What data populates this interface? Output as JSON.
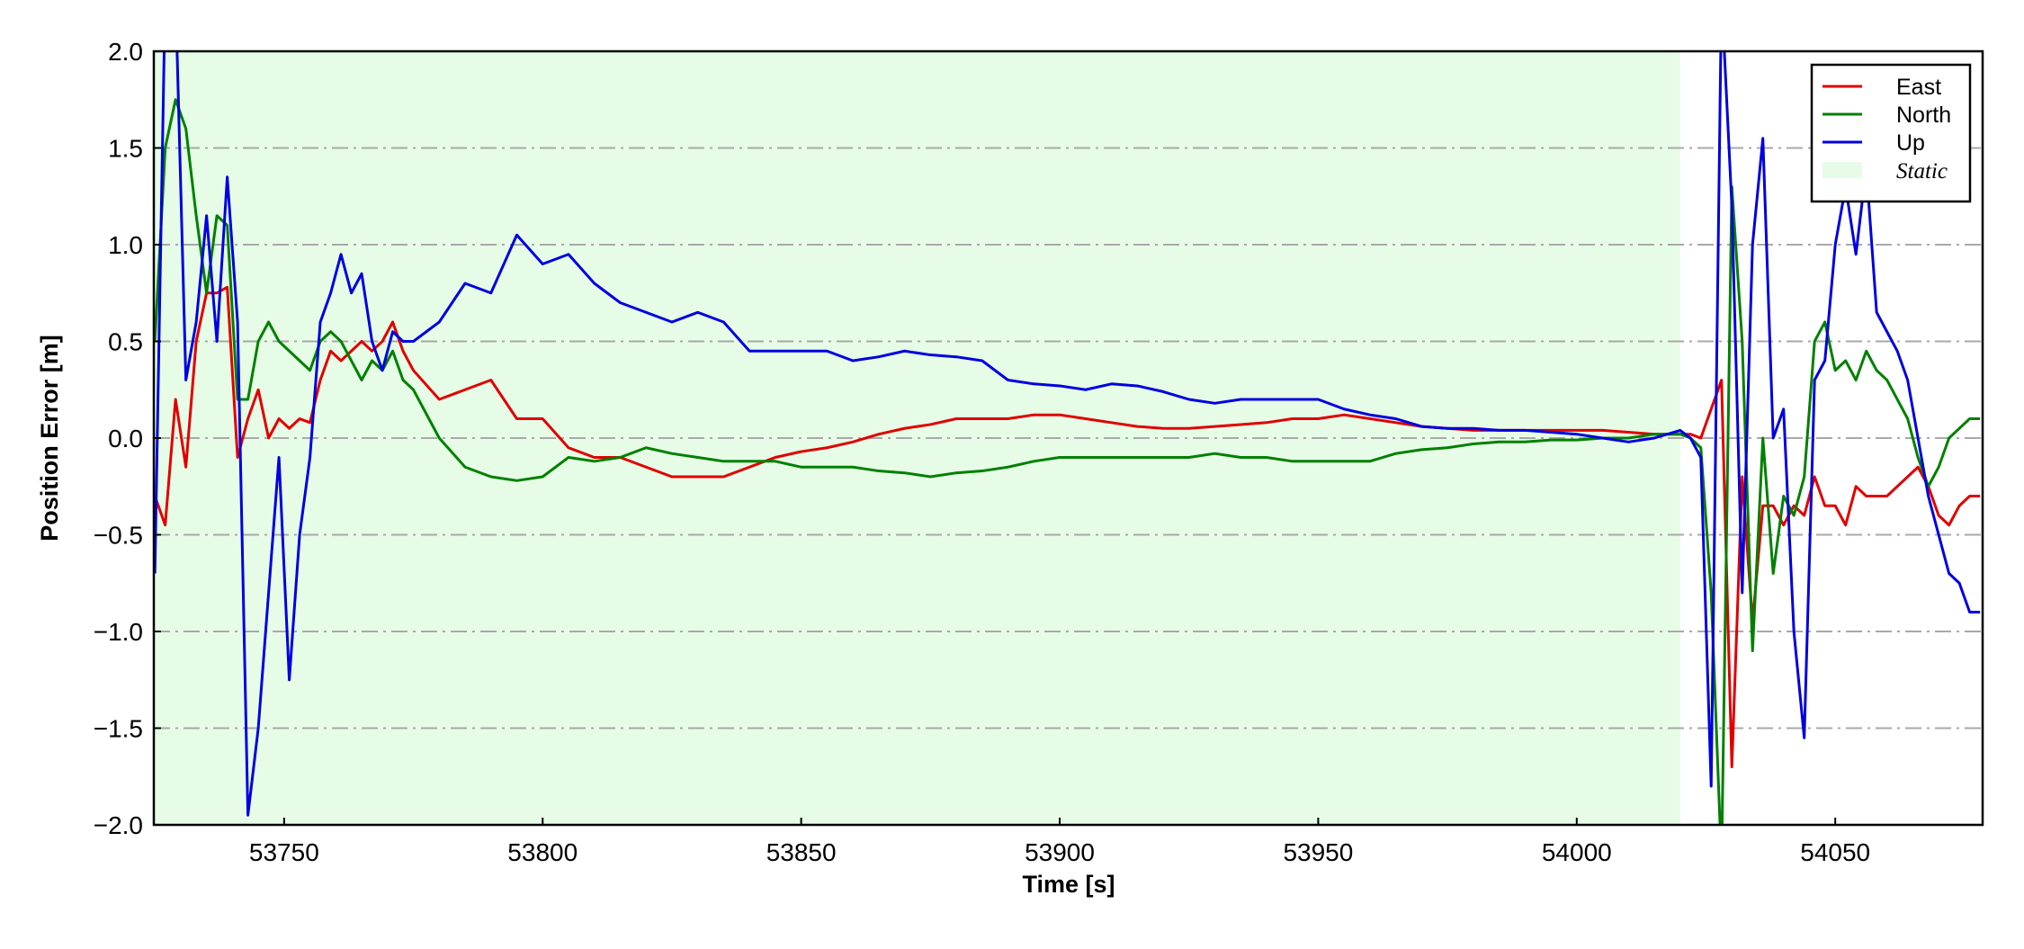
{
  "chart_data": {
    "type": "line",
    "xlabel": "Time [s]",
    "ylabel": "Position Error [m]",
    "x": [
      53725,
      53727,
      53729,
      53731,
      53733,
      53735,
      53737,
      53739,
      53741,
      53743,
      53745,
      53747,
      53749,
      53751,
      53753,
      53755,
      53757,
      53759,
      53761,
      53763,
      53765,
      53767,
      53769,
      53771,
      53773,
      53775,
      53780,
      53785,
      53790,
      53795,
      53800,
      53805,
      53810,
      53815,
      53820,
      53825,
      53830,
      53835,
      53840,
      53845,
      53850,
      53855,
      53860,
      53865,
      53870,
      53875,
      53880,
      53885,
      53890,
      53895,
      53900,
      53905,
      53910,
      53915,
      53920,
      53925,
      53930,
      53935,
      53940,
      53945,
      53950,
      53955,
      53960,
      53965,
      53970,
      53975,
      53980,
      53985,
      53990,
      53995,
      54000,
      54005,
      54010,
      54015,
      54020,
      54022,
      54024,
      54026,
      54028,
      54030,
      54032,
      54034,
      54036,
      54038,
      54040,
      54042,
      54044,
      54046,
      54048,
      54050,
      54052,
      54054,
      54056,
      54058,
      54060,
      54062,
      54064,
      54066,
      54068,
      54070,
      54072,
      54074,
      54076,
      54078
    ],
    "series": [
      {
        "name": "East",
        "color": "#e00000",
        "values": [
          -0.3,
          -0.45,
          0.2,
          -0.15,
          0.5,
          0.75,
          0.75,
          0.78,
          -0.1,
          0.1,
          0.25,
          0.0,
          0.1,
          0.05,
          0.1,
          0.08,
          0.3,
          0.45,
          0.4,
          0.45,
          0.5,
          0.45,
          0.5,
          0.6,
          0.45,
          0.35,
          0.2,
          0.25,
          0.3,
          0.1,
          0.1,
          -0.05,
          -0.1,
          -0.1,
          -0.15,
          -0.2,
          -0.2,
          -0.2,
          -0.15,
          -0.1,
          -0.07,
          -0.05,
          -0.02,
          0.02,
          0.05,
          0.07,
          0.1,
          0.1,
          0.1,
          0.12,
          0.12,
          0.1,
          0.08,
          0.06,
          0.05,
          0.05,
          0.06,
          0.07,
          0.08,
          0.1,
          0.1,
          0.12,
          0.1,
          0.08,
          0.06,
          0.05,
          0.04,
          0.04,
          0.04,
          0.04,
          0.04,
          0.04,
          0.03,
          0.02,
          0.02,
          0.02,
          0.0,
          0.15,
          0.3,
          -1.7,
          -0.2,
          -0.95,
          -0.35,
          -0.35,
          -0.45,
          -0.35,
          -0.4,
          -0.2,
          -0.35,
          -0.35,
          -0.45,
          -0.25,
          -0.3,
          -0.3,
          -0.3,
          -0.25,
          -0.2,
          -0.15,
          -0.25,
          -0.4,
          -0.45,
          -0.35,
          -0.3,
          -0.3
        ]
      },
      {
        "name": "North",
        "color": "#008000",
        "values": [
          0.5,
          1.5,
          1.75,
          1.6,
          1.15,
          0.75,
          1.15,
          1.1,
          0.2,
          0.2,
          0.5,
          0.6,
          0.5,
          0.45,
          0.4,
          0.35,
          0.5,
          0.55,
          0.5,
          0.4,
          0.3,
          0.4,
          0.35,
          0.45,
          0.3,
          0.25,
          0.0,
          -0.15,
          -0.2,
          -0.22,
          -0.2,
          -0.1,
          -0.12,
          -0.1,
          -0.05,
          -0.08,
          -0.1,
          -0.12,
          -0.12,
          -0.12,
          -0.15,
          -0.15,
          -0.15,
          -0.17,
          -0.18,
          -0.2,
          -0.18,
          -0.17,
          -0.15,
          -0.12,
          -0.1,
          -0.1,
          -0.1,
          -0.1,
          -0.1,
          -0.1,
          -0.08,
          -0.1,
          -0.1,
          -0.12,
          -0.12,
          -0.12,
          -0.12,
          -0.08,
          -0.06,
          -0.05,
          -0.03,
          -0.02,
          -0.02,
          -0.01,
          -0.01,
          0.0,
          0.0,
          0.02,
          0.02,
          0.0,
          -0.05,
          -0.8,
          -2.2,
          1.3,
          0.5,
          -1.1,
          0.0,
          -0.7,
          -0.3,
          -0.4,
          -0.2,
          0.5,
          0.6,
          0.35,
          0.4,
          0.3,
          0.45,
          0.35,
          0.3,
          0.2,
          0.1,
          -0.1,
          -0.25,
          -0.15,
          0.0,
          0.05,
          0.1,
          0.1
        ]
      },
      {
        "name": "Up",
        "color": "#0000e0",
        "values": [
          -0.7,
          2.3,
          2.3,
          0.3,
          0.6,
          1.15,
          0.5,
          1.35,
          0.6,
          -1.95,
          -1.5,
          -0.8,
          -0.1,
          -1.25,
          -0.5,
          -0.1,
          0.6,
          0.75,
          0.95,
          0.75,
          0.85,
          0.5,
          0.35,
          0.55,
          0.5,
          0.5,
          0.6,
          0.8,
          0.75,
          1.05,
          0.9,
          0.95,
          0.8,
          0.7,
          0.65,
          0.6,
          0.65,
          0.6,
          0.45,
          0.45,
          0.45,
          0.45,
          0.4,
          0.42,
          0.45,
          0.43,
          0.42,
          0.4,
          0.3,
          0.28,
          0.27,
          0.25,
          0.28,
          0.27,
          0.24,
          0.2,
          0.18,
          0.2,
          0.2,
          0.2,
          0.2,
          0.15,
          0.12,
          0.1,
          0.06,
          0.05,
          0.05,
          0.04,
          0.04,
          0.03,
          0.02,
          0.0,
          -0.02,
          0.0,
          0.04,
          0.0,
          -0.1,
          -1.8,
          2.3,
          1.2,
          -0.8,
          1.0,
          1.55,
          0.0,
          0.15,
          -1.0,
          -1.55,
          0.3,
          0.4,
          1.0,
          1.3,
          0.95,
          1.4,
          0.65,
          0.55,
          0.45,
          0.3,
          0.0,
          -0.3,
          -0.5,
          -0.7,
          -0.75,
          -0.9,
          -0.9
        ]
      }
    ],
    "shaded_region": {
      "name": "Static",
      "x": [
        53724.8,
        54020
      ],
      "color": "#e6fce6"
    },
    "xlim": [
      53724.8,
      54078.5
    ],
    "xticks": [
      53750,
      53800,
      53850,
      53900,
      53950,
      54000,
      54050
    ],
    "ylim": [
      -2.0,
      2.0
    ],
    "yticks": [
      {
        "value": -2.0,
        "label": "−2.0"
      },
      {
        "value": -1.5,
        "label": "−1.5"
      },
      {
        "value": -1.0,
        "label": "−1.0"
      },
      {
        "value": -0.5,
        "label": "−0.5"
      },
      {
        "value": 0.0,
        "label": "0.0"
      },
      0.5,
      {
        "value": 1.0,
        "label": "1.0"
      },
      1.5,
      {
        "value": 2.0,
        "label": "2.0"
      }
    ],
    "grid": true,
    "legend": "upper right"
  }
}
